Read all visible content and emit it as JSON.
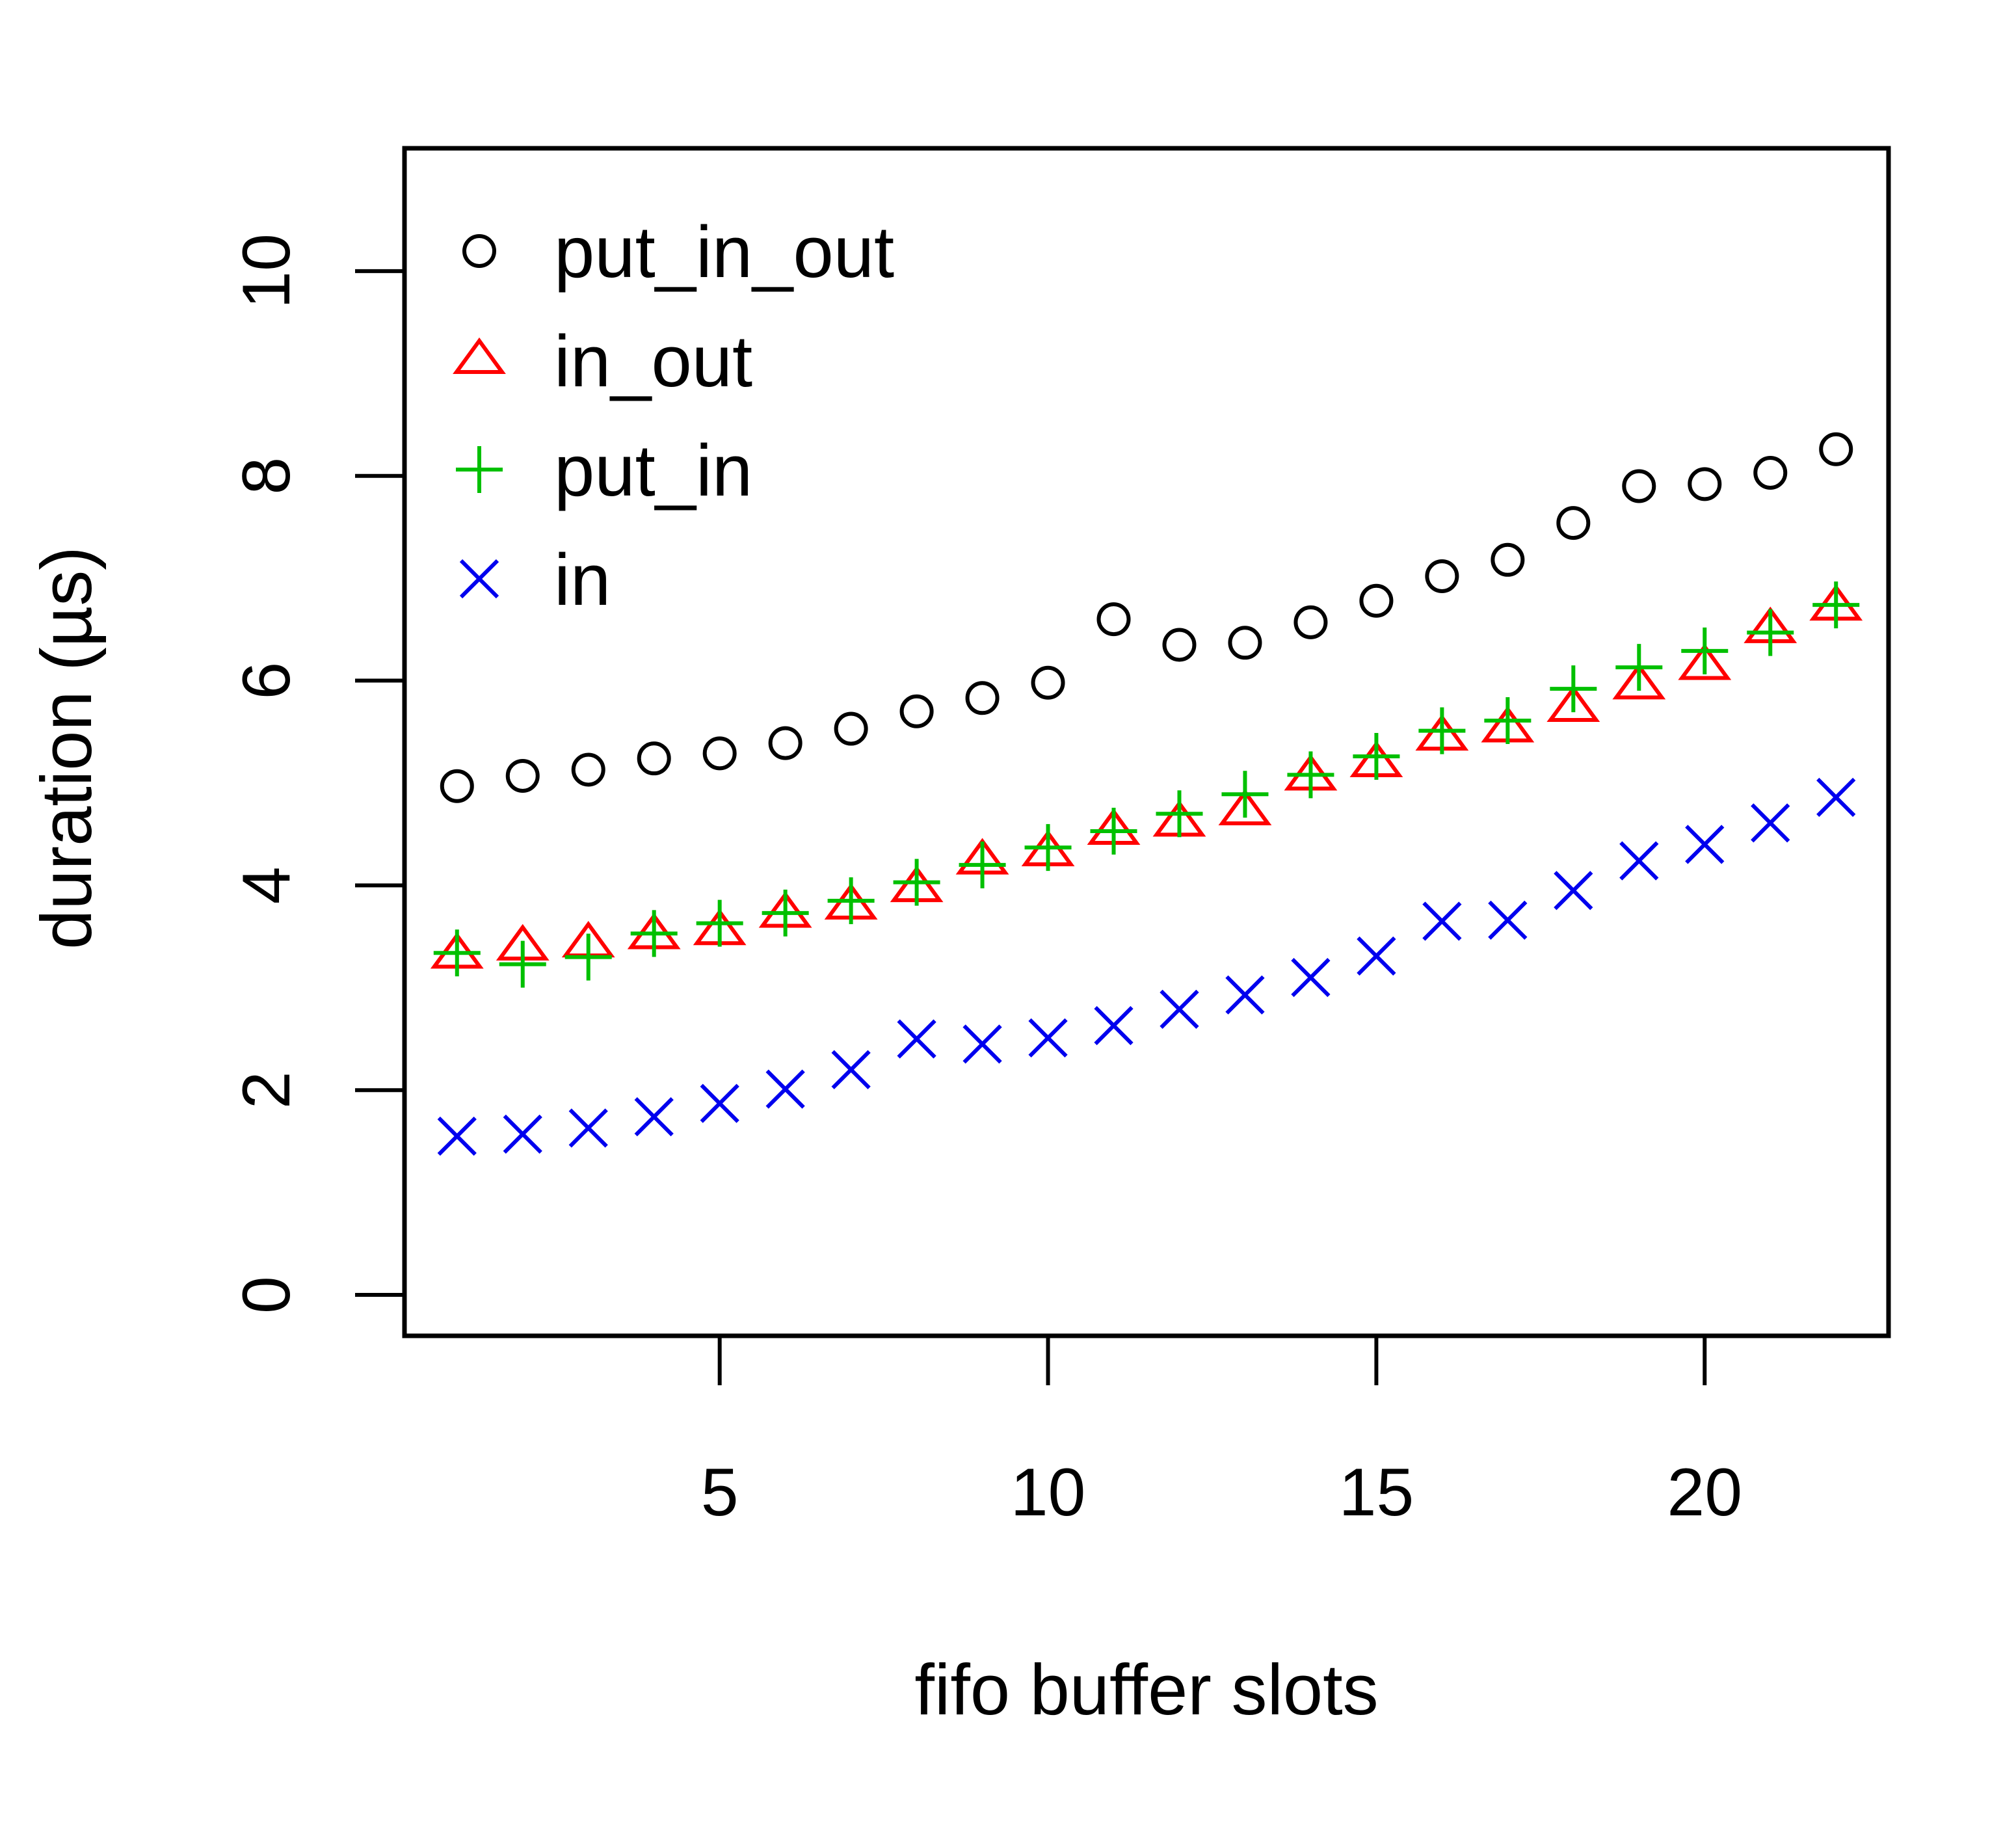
{
  "chart_data": {
    "type": "scatter",
    "title": "",
    "xlabel": "fifo buffer slots",
    "ylabel": "duration (µs)",
    "xlim": [
      0.2,
      22.8
    ],
    "ylim": [
      -0.4,
      11.2
    ],
    "xticks": [
      5,
      10,
      15,
      20
    ],
    "yticks": [
      0,
      2,
      4,
      6,
      8,
      10
    ],
    "grid": false,
    "legend_position": "top-left",
    "x": [
      1,
      2,
      3,
      4,
      5,
      6,
      7,
      8,
      9,
      10,
      11,
      12,
      13,
      14,
      15,
      16,
      17,
      18,
      19,
      20,
      21,
      22
    ],
    "series": [
      {
        "name": "put_in_out",
        "marker": "circle",
        "color": "#000000",
        "values": [
          4.97,
          5.07,
          5.13,
          5.24,
          5.29,
          5.39,
          5.53,
          5.7,
          5.83,
          5.98,
          6.6,
          6.35,
          6.37,
          6.57,
          6.78,
          7.02,
          7.18,
          7.54,
          7.9,
          7.92,
          8.03,
          8.26
        ]
      },
      {
        "name": "in_out",
        "marker": "triangle",
        "color": "#ff0000",
        "values": [
          3.32,
          3.4,
          3.43,
          3.51,
          3.55,
          3.72,
          3.8,
          3.97,
          4.24,
          4.32,
          4.53,
          4.61,
          4.72,
          5.06,
          5.19,
          5.45,
          5.53,
          5.73,
          5.95,
          6.14,
          6.5,
          6.72
        ]
      },
      {
        "name": "put_in",
        "marker": "plus",
        "color": "#00c000",
        "values": [
          3.34,
          3.23,
          3.3,
          3.53,
          3.63,
          3.73,
          3.85,
          4.03,
          4.2,
          4.37,
          4.53,
          4.7,
          4.89,
          5.08,
          5.26,
          5.51,
          5.61,
          5.92,
          6.13,
          6.29,
          6.47,
          6.74
        ]
      },
      {
        "name": "in",
        "marker": "cross",
        "color": "#0000ee",
        "values": [
          1.55,
          1.57,
          1.63,
          1.74,
          1.87,
          2.01,
          2.2,
          2.5,
          2.45,
          2.51,
          2.63,
          2.79,
          2.93,
          3.1,
          3.31,
          3.65,
          3.66,
          3.95,
          4.24,
          4.4,
          4.61,
          4.86
        ]
      }
    ]
  }
}
